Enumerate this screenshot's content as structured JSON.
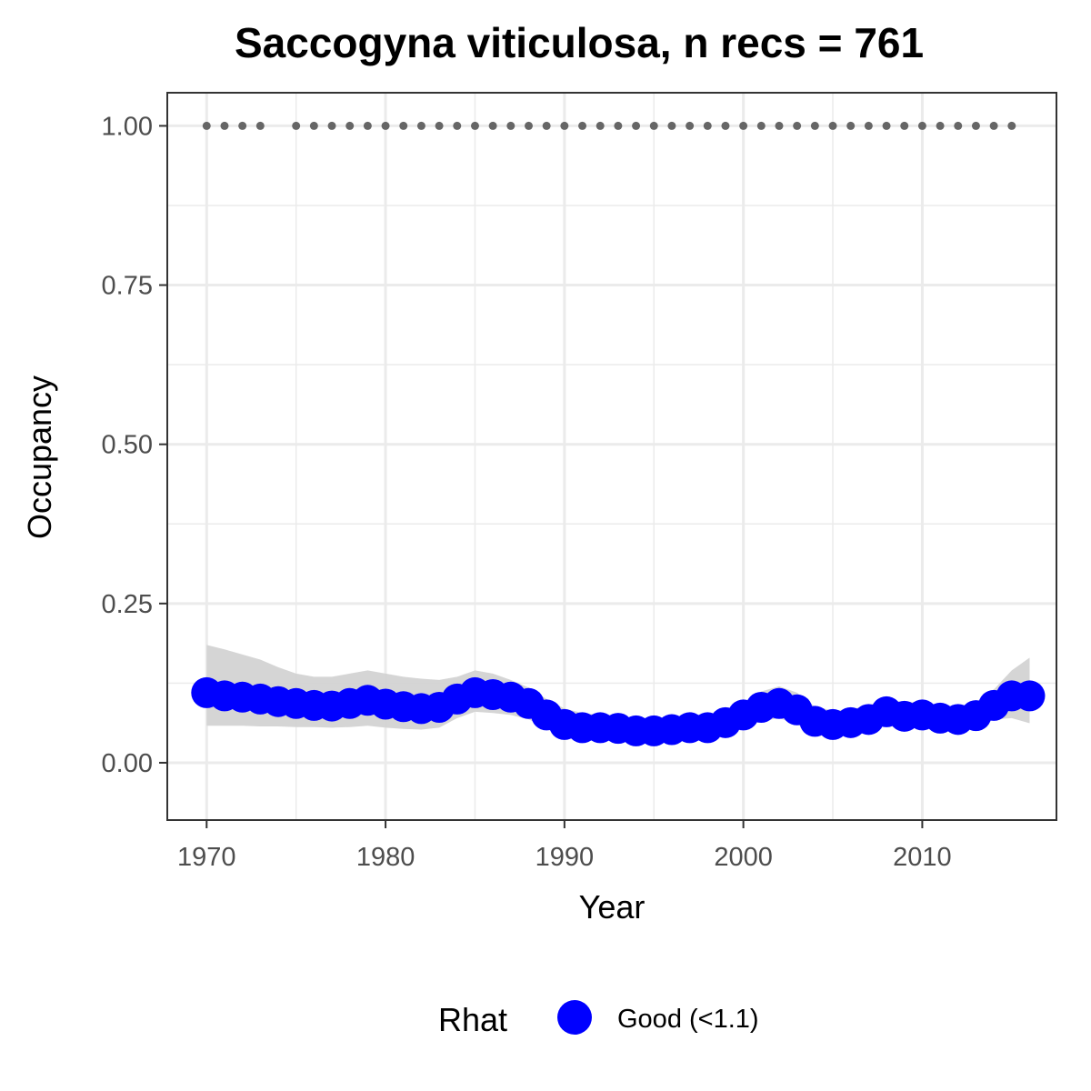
{
  "chart_data": {
    "type": "line",
    "title": "Saccogyna viticulosa, n recs = 761",
    "xlabel": "Year",
    "ylabel": "Occupancy",
    "xlim": [
      1967.8,
      2017.5
    ],
    "ylim": [
      -0.09,
      1.052
    ],
    "x_ticks": [
      1970,
      1980,
      1990,
      2000,
      2010
    ],
    "x_tick_labels": [
      "1970",
      "1980",
      "1990",
      "2000",
      "2010"
    ],
    "y_ticks": [
      0,
      0.25,
      0.5,
      0.75,
      1.0
    ],
    "y_tick_labels": [
      "0.00",
      "0.25",
      "0.50",
      "0.75",
      "1.00"
    ],
    "grid": true,
    "legend_position": "bottom",
    "legend_title": "Rhat",
    "colors": {
      "point": "#0000ff",
      "ribbon": "#d3d3d3",
      "record_dots": "#666666",
      "grid": "#ebebeb",
      "panel_border": "#333333"
    },
    "series": [
      {
        "name": "Good (<1.1)",
        "x": [
          1970,
          1971,
          1972,
          1973,
          1974,
          1975,
          1976,
          1977,
          1978,
          1979,
          1980,
          1981,
          1982,
          1983,
          1984,
          1985,
          1986,
          1987,
          1988,
          1989,
          1990,
          1991,
          1992,
          1993,
          1994,
          1995,
          1996,
          1997,
          1998,
          1999,
          2000,
          2001,
          2002,
          2003,
          2004,
          2005,
          2006,
          2007,
          2008,
          2009,
          2010,
          2011,
          2012,
          2013,
          2014,
          2015,
          2016
        ],
        "y": [
          0.11,
          0.105,
          0.103,
          0.1,
          0.096,
          0.093,
          0.09,
          0.089,
          0.093,
          0.098,
          0.092,
          0.088,
          0.085,
          0.087,
          0.1,
          0.11,
          0.107,
          0.103,
          0.093,
          0.075,
          0.06,
          0.055,
          0.055,
          0.054,
          0.05,
          0.05,
          0.052,
          0.055,
          0.055,
          0.063,
          0.075,
          0.087,
          0.093,
          0.083,
          0.065,
          0.06,
          0.063,
          0.068,
          0.08,
          0.073,
          0.075,
          0.07,
          0.068,
          0.074,
          0.09,
          0.105,
          0.105
        ]
      }
    ],
    "ribbon": {
      "x": [
        1970,
        1971,
        1972,
        1973,
        1974,
        1975,
        1976,
        1977,
        1978,
        1979,
        1980,
        1981,
        1982,
        1983,
        1984,
        1985,
        1986,
        1987,
        1988,
        1989,
        1990,
        1991,
        1992,
        1993,
        1994,
        1995,
        1996,
        1997,
        1998,
        1999,
        2000,
        2001,
        2002,
        2003,
        2004,
        2005,
        2006,
        2007,
        2008,
        2009,
        2010,
        2011,
        2012,
        2013,
        2014,
        2015,
        2016
      ],
      "upper": [
        0.185,
        0.178,
        0.17,
        0.162,
        0.15,
        0.14,
        0.135,
        0.135,
        0.14,
        0.145,
        0.14,
        0.135,
        0.132,
        0.13,
        0.135,
        0.145,
        0.14,
        0.13,
        0.118,
        0.1,
        0.085,
        0.078,
        0.075,
        0.072,
        0.068,
        0.068,
        0.07,
        0.073,
        0.075,
        0.082,
        0.095,
        0.112,
        0.12,
        0.11,
        0.088,
        0.082,
        0.084,
        0.09,
        0.1,
        0.095,
        0.095,
        0.09,
        0.088,
        0.095,
        0.115,
        0.145,
        0.165
      ],
      "lower": [
        0.058,
        0.058,
        0.058,
        0.057,
        0.057,
        0.056,
        0.056,
        0.055,
        0.056,
        0.058,
        0.055,
        0.053,
        0.052,
        0.055,
        0.07,
        0.08,
        0.078,
        0.075,
        0.068,
        0.055,
        0.042,
        0.038,
        0.038,
        0.037,
        0.035,
        0.035,
        0.036,
        0.038,
        0.038,
        0.045,
        0.055,
        0.065,
        0.07,
        0.06,
        0.048,
        0.043,
        0.045,
        0.05,
        0.06,
        0.055,
        0.057,
        0.053,
        0.05,
        0.055,
        0.068,
        0.07,
        0.062
      ]
    },
    "records": {
      "y": 1.0,
      "x": [
        1970,
        1971,
        1972,
        1973,
        1975,
        1976,
        1977,
        1978,
        1979,
        1980,
        1981,
        1982,
        1983,
        1984,
        1985,
        1986,
        1987,
        1988,
        1989,
        1990,
        1991,
        1992,
        1993,
        1994,
        1995,
        1996,
        1997,
        1998,
        1999,
        2000,
        2001,
        2002,
        2003,
        2004,
        2005,
        2006,
        2007,
        2008,
        2009,
        2010,
        2011,
        2012,
        2013,
        2014,
        2015
      ]
    }
  }
}
